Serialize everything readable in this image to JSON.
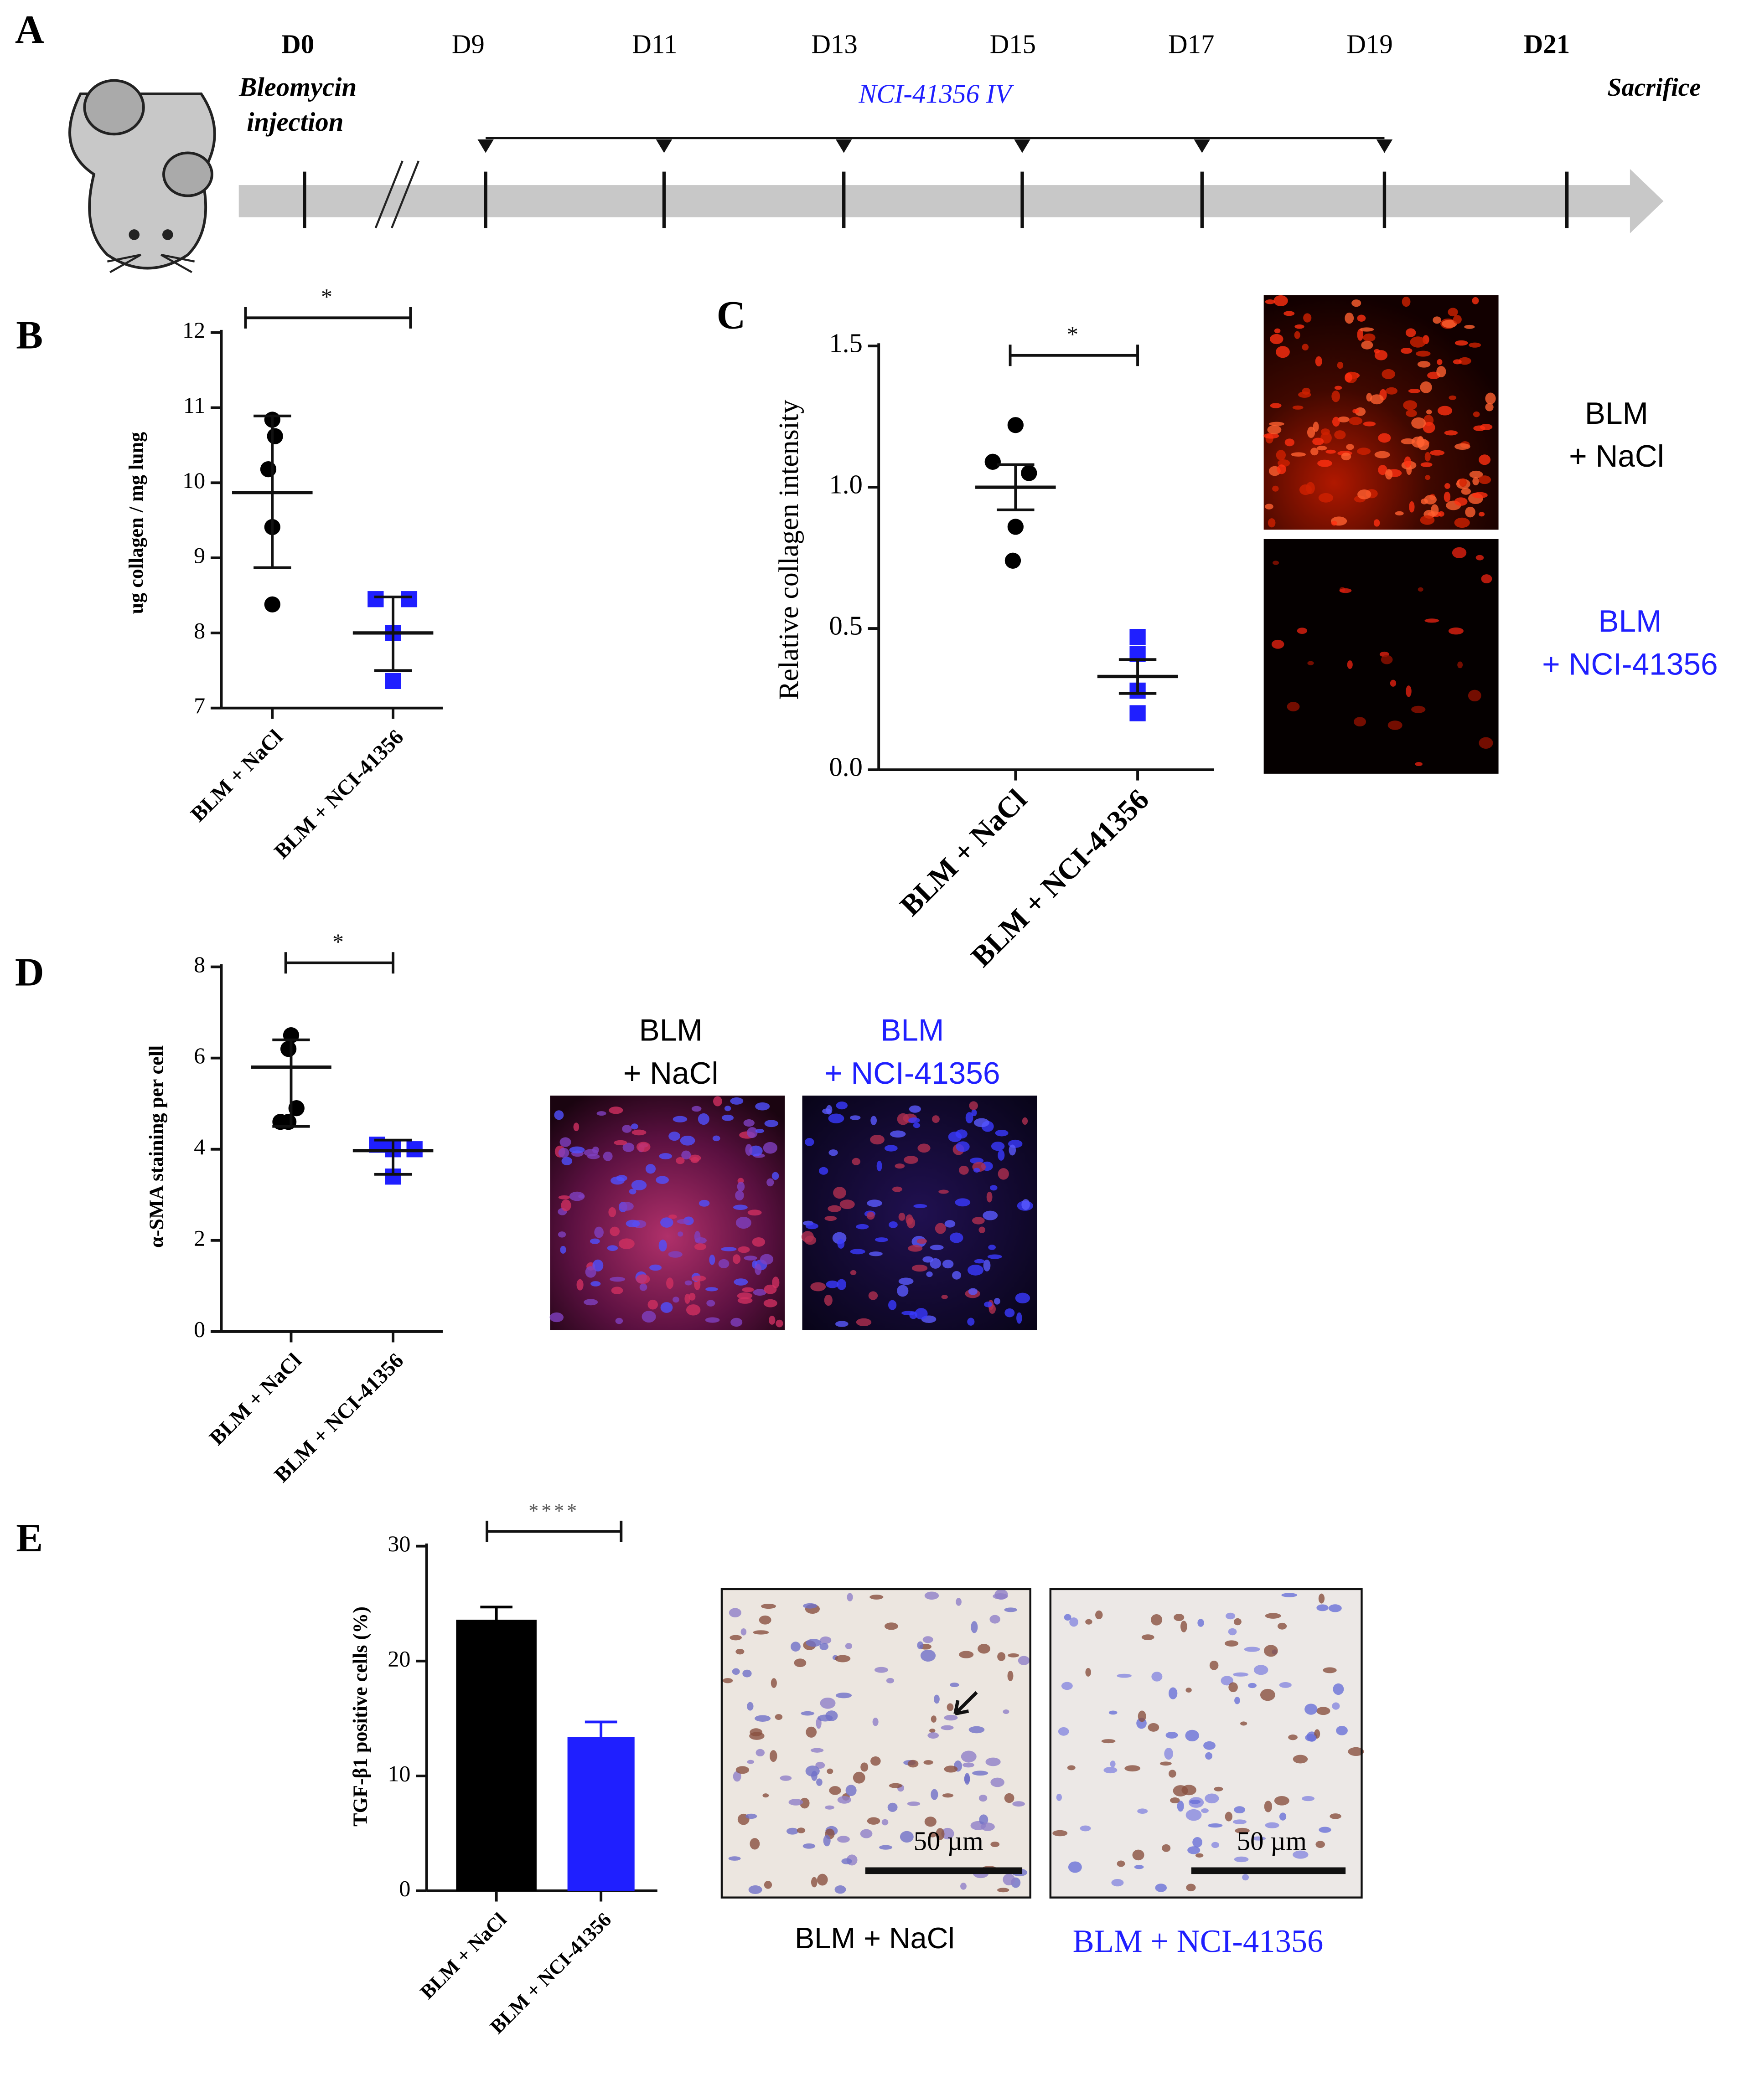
{
  "panel_labels": [
    "A",
    "B",
    "C",
    "D",
    "E"
  ],
  "timeline": {
    "days": [
      "D0",
      "D9",
      "D11",
      "D13",
      "D15",
      "D17",
      "D19",
      "D21"
    ],
    "injection": [
      "Bleomycin",
      "injection"
    ],
    "treatment": "NCI-41356 IV",
    "end": "Sacrifice"
  },
  "chart_data": [
    {
      "type": "dot",
      "y_label": "ug collagen / mg lung",
      "categories": [
        "BLM + NaCl",
        "BLM + NCI-41356"
      ],
      "colors": [
        "#000000",
        "#1f1fff"
      ],
      "values": [
        [
          10.84,
          10.62,
          10.18,
          9.41,
          8.38
        ],
        [
          8.45,
          8.45,
          8.0,
          7.36
        ]
      ],
      "means": [
        9.87,
        8.0
      ],
      "error_bars": [
        [
          8.87,
          10.89
        ],
        [
          7.5,
          8.48
        ]
      ],
      "ylim": [
        7,
        12
      ],
      "yticks": [
        7,
        8,
        9,
        10,
        11,
        12
      ],
      "significance": "*"
    },
    {
      "type": "dot",
      "y_label": "Relative collagen intensity",
      "categories": [
        "BLM + NaCl",
        "BLM + NCI-41356"
      ],
      "colors": [
        "#000000",
        "#1f1fff"
      ],
      "values": [
        [
          1.22,
          1.09,
          1.05,
          0.86,
          0.74
        ],
        [
          0.47,
          0.41,
          0.28,
          0.2
        ]
      ],
      "means": [
        1.0,
        0.33
      ],
      "error_bars": [
        [
          0.92,
          1.08
        ],
        [
          0.27,
          0.39
        ]
      ],
      "ylim": [
        0,
        1.5
      ],
      "yticks": [
        {
          "value": 0,
          "label": "0.0"
        },
        0.5,
        {
          "value": 1,
          "label": "1.0"
        },
        1.5
      ],
      "significance": "*"
    },
    {
      "type": "dot",
      "y_label": "α-SMA staining per cell",
      "categories": [
        "BLM + NaCl",
        "BLM + NCI-41356"
      ],
      "colors": [
        "#000000",
        "#1f1fff"
      ],
      "values": [
        [
          6.5,
          6.2,
          4.9,
          4.6,
          4.6
        ],
        [
          4.1,
          4.0,
          4.0,
          3.4
        ]
      ],
      "means": [
        5.8,
        3.97
      ],
      "error_bars": [
        [
          4.5,
          6.4
        ],
        [
          3.45,
          4.2
        ]
      ],
      "ylim": [
        0,
        8
      ],
      "yticks": [
        0,
        2,
        4,
        6,
        8
      ],
      "significance": "*"
    },
    {
      "type": "bar",
      "y_label": "TGF-β1  positive cells (%)",
      "categories": [
        "BLM + NaCl",
        "BLM + NCI-41356"
      ],
      "colors": [
        "#000000",
        "#1f1fff"
      ],
      "values": [
        23.6,
        13.4
      ],
      "errors": [
        1.1,
        1.3
      ],
      "ylim": [
        0,
        30
      ],
      "yticks": [
        0,
        10,
        20,
        30
      ],
      "significance": "****"
    }
  ],
  "images": {
    "C": {
      "labels": [
        [
          "BLM",
          "+ NaCl"
        ],
        [
          "BLM",
          "+ NCI-41356"
        ]
      ]
    },
    "D": {
      "labels": [
        [
          "BLM",
          "+ NaCl"
        ],
        [
          "BLM",
          "+ NCI-41356"
        ]
      ]
    },
    "E": {
      "labels": [
        "BLM  + NaCl",
        "BLM + NCI-41356"
      ],
      "scale_bars": [
        "50 µm",
        "50 µm"
      ]
    }
  }
}
